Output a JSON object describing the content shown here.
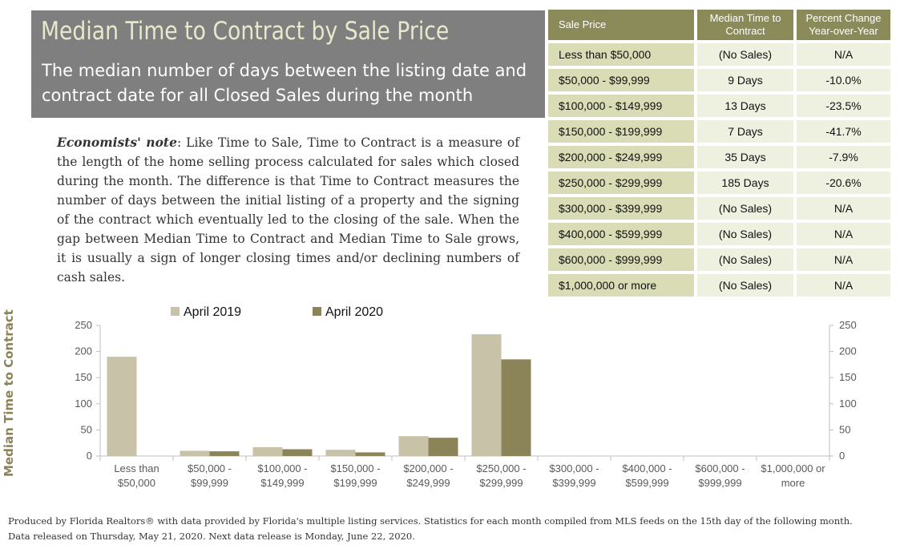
{
  "header": {
    "title": "Median Time to Contract by Sale Price",
    "subtitle": "The median number of days between the listing date and contract date for all Closed Sales during the month"
  },
  "note": {
    "label": "Economists' note",
    "text": ":  Like Time to Sale, Time to Contract is a measure of the length of the home selling process calculated for sales which closed during the month.  The difference is that Time to Contract measures the number of days between the initial listing of a property and the signing of the contract which eventually led to the closing of the sale.  When the gap between Median Time to Contract and Median Time to Sale grows, it is usually a sign of longer closing times and/or declining numbers of cash sales."
  },
  "table": {
    "headers": [
      "Sale Price",
      "Median Time to Contract",
      "Percent Change Year-over-Year"
    ],
    "rows": [
      [
        "Less than $50,000",
        "(No Sales)",
        "N/A"
      ],
      [
        "$50,000 - $99,999",
        "9 Days",
        "-10.0%"
      ],
      [
        "$100,000 - $149,999",
        "13 Days",
        "-23.5%"
      ],
      [
        "$150,000 - $199,999",
        "7 Days",
        "-41.7%"
      ],
      [
        "$200,000 - $249,999",
        "35 Days",
        "-7.9%"
      ],
      [
        "$250,000 - $299,999",
        "185 Days",
        "-20.6%"
      ],
      [
        "$300,000 - $399,999",
        "(No Sales)",
        "N/A"
      ],
      [
        "$400,000 - $599,999",
        "(No Sales)",
        "N/A"
      ],
      [
        "$600,000 - $999,999",
        "(No Sales)",
        "N/A"
      ],
      [
        "$1,000,000 or more",
        "(No Sales)",
        "N/A"
      ]
    ]
  },
  "chart_data": {
    "type": "bar",
    "ylabel": "Median Time to Contract",
    "ylim": [
      0,
      250
    ],
    "yticks": [
      0,
      50,
      100,
      150,
      200,
      250
    ],
    "legend_position": "top",
    "categories": [
      [
        "Less than",
        "$50,000"
      ],
      [
        "$50,000 -",
        "$99,999"
      ],
      [
        "$100,000 -",
        "$149,999"
      ],
      [
        "$150,000 -",
        "$199,999"
      ],
      [
        "$200,000 -",
        "$249,999"
      ],
      [
        "$250,000 -",
        "$299,999"
      ],
      [
        "$300,000 -",
        "$399,999"
      ],
      [
        "$400,000 -",
        "$599,999"
      ],
      [
        "$600,000 -",
        "$999,999"
      ],
      [
        "$1,000,000 or",
        "more"
      ]
    ],
    "series": [
      {
        "name": "April 2019",
        "color": "#c8c3a8",
        "values": [
          190,
          10,
          17,
          12,
          38,
          233,
          0,
          0,
          0,
          0
        ]
      },
      {
        "name": "April 2020",
        "color": "#8b8458",
        "values": [
          0,
          9,
          13,
          7,
          35,
          185,
          0,
          0,
          0,
          0
        ]
      }
    ]
  },
  "footer": {
    "line1": "Produced by Florida Realtors® with data provided by Florida's multiple listing services. Statistics for each month compiled from MLS feeds on the 15th day of the following month.",
    "line2": "Data released on Thursday, May 21, 2020. Next data release is Monday, June 22, 2020."
  }
}
